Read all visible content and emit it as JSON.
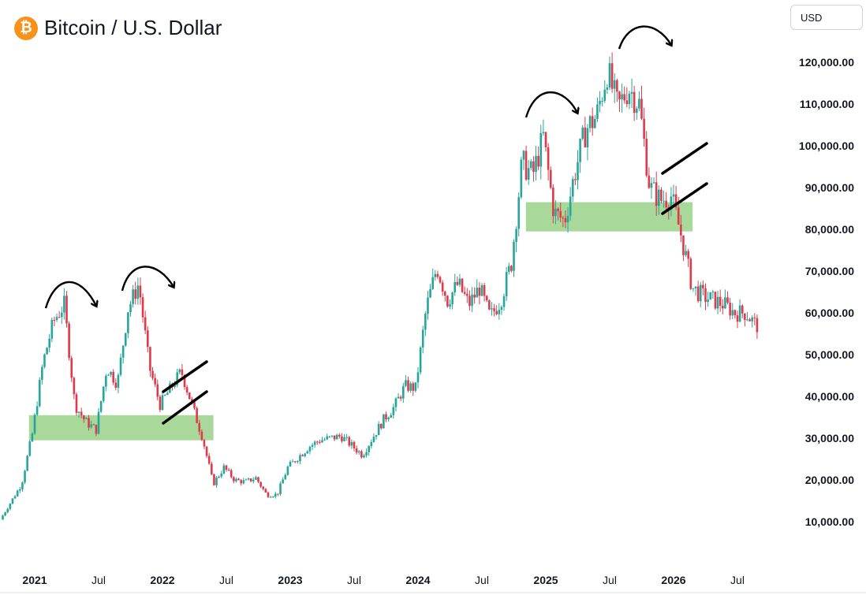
{
  "header": {
    "title": "Bitcoin / U.S. Dollar",
    "icon": "bitcoin-icon",
    "icon_color": "#f7931a"
  },
  "currency_button": {
    "label": "USD"
  },
  "colors": {
    "up": "#26a69a",
    "down": "#e0394a",
    "zone": "#a8d99b",
    "annotation": "#000000"
  },
  "chart_data": {
    "type": "candlestick",
    "title": "Bitcoin / U.S. Dollar",
    "ylim": [
      0,
      130000
    ],
    "y_ticks": [
      10000,
      20000,
      30000,
      40000,
      50000,
      60000,
      70000,
      80000,
      90000,
      100000,
      110000,
      120000
    ],
    "y_tick_labels": [
      "10,000.00",
      "20,000.00",
      "30,000.00",
      "40,000.00",
      "50,000.00",
      "60,000.00",
      "70,000.00",
      "80,000.00",
      "90,000.00",
      "100,000.00",
      "110,000.00",
      "120,000.00"
    ],
    "x_ticks": [
      {
        "date": "2021-01",
        "label": "2021",
        "year": true
      },
      {
        "date": "2021-07",
        "label": "Jul",
        "year": false
      },
      {
        "date": "2022-01",
        "label": "2022",
        "year": true
      },
      {
        "date": "2022-07",
        "label": "Jul",
        "year": false
      },
      {
        "date": "2023-01",
        "label": "2023",
        "year": true
      },
      {
        "date": "2023-07",
        "label": "Jul",
        "year": false
      },
      {
        "date": "2024-01",
        "label": "2024",
        "year": true
      },
      {
        "date": "2024-07",
        "label": "Jul",
        "year": false
      },
      {
        "date": "2025-01",
        "label": "2025",
        "year": true
      },
      {
        "date": "2025-07",
        "label": "Jul",
        "year": false
      },
      {
        "date": "2026-01",
        "label": "2026",
        "year": true
      },
      {
        "date": "2026-07",
        "label": "Jul",
        "year": false
      }
    ],
    "price_path": [
      [
        "2020-10",
        10500
      ],
      [
        "2020-12",
        19000
      ],
      [
        "2021-01",
        31000
      ],
      [
        "2021-02",
        48000
      ],
      [
        "2021-03",
        58000
      ],
      [
        "2021-04",
        62000
      ],
      [
        "2021-05",
        38000
      ],
      [
        "2021-06",
        34000
      ],
      [
        "2021-07",
        32000
      ],
      [
        "2021-08",
        47000
      ],
      [
        "2021-09",
        43000
      ],
      [
        "2021-10",
        61000
      ],
      [
        "2021-11",
        67000
      ],
      [
        "2021-12",
        47000
      ],
      [
        "2022-01",
        38000
      ],
      [
        "2022-02",
        42000
      ],
      [
        "2022-03",
        46000
      ],
      [
        "2022-04",
        38000
      ],
      [
        "2022-05",
        30000
      ],
      [
        "2022-06",
        19000
      ],
      [
        "2022-07",
        23000
      ],
      [
        "2022-08",
        20000
      ],
      [
        "2022-09",
        19500
      ],
      [
        "2022-10",
        20500
      ],
      [
        "2022-11",
        16500
      ],
      [
        "2022-12",
        16500
      ],
      [
        "2023-01",
        23000
      ],
      [
        "2023-03",
        28000
      ],
      [
        "2023-04",
        29500
      ],
      [
        "2023-06",
        30500
      ],
      [
        "2023-08",
        26000
      ],
      [
        "2023-10",
        34500
      ],
      [
        "2023-11",
        37500
      ],
      [
        "2023-12",
        42500
      ],
      [
        "2024-01",
        42000
      ],
      [
        "2024-02",
        61000
      ],
      [
        "2024-03",
        71000
      ],
      [
        "2024-04",
        63000
      ],
      [
        "2024-05",
        67000
      ],
      [
        "2024-06",
        62000
      ],
      [
        "2024-07",
        66000
      ],
      [
        "2024-08",
        59000
      ],
      [
        "2024-09",
        63000
      ],
      [
        "2024-10",
        72000
      ],
      [
        "2024-11",
        96000
      ],
      [
        "2024-12",
        93000
      ],
      [
        "2025-01",
        102000
      ],
      [
        "2025-02",
        84000
      ],
      [
        "2025-03",
        82000
      ],
      [
        "2025-04",
        94000
      ],
      [
        "2025-05",
        104000
      ],
      [
        "2025-06",
        107000
      ],
      [
        "2025-07",
        118000
      ],
      [
        "2025-08",
        109000
      ],
      [
        "2025-09",
        114000
      ],
      [
        "2025-10",
        110000
      ],
      [
        "2025-11",
        90000
      ],
      [
        "2025-12",
        87000
      ],
      [
        "2026-01",
        88000
      ],
      [
        "2026-02",
        78000
      ],
      [
        "2026-03",
        66000
      ],
      [
        "2026-04",
        64000
      ],
      [
        "2026-05",
        63000
      ],
      [
        "2026-06",
        62000
      ],
      [
        "2026-07",
        60000
      ],
      [
        "2026-08",
        60000
      ],
      [
        "2026-09",
        57000
      ]
    ],
    "support_zones": [
      {
        "from": "2020-12-15",
        "to": "2022-05-25",
        "low": 29500,
        "high": 35500
      },
      {
        "from": "2024-11-05",
        "to": "2026-02-25",
        "low": 79500,
        "high": 86500
      }
    ]
  }
}
